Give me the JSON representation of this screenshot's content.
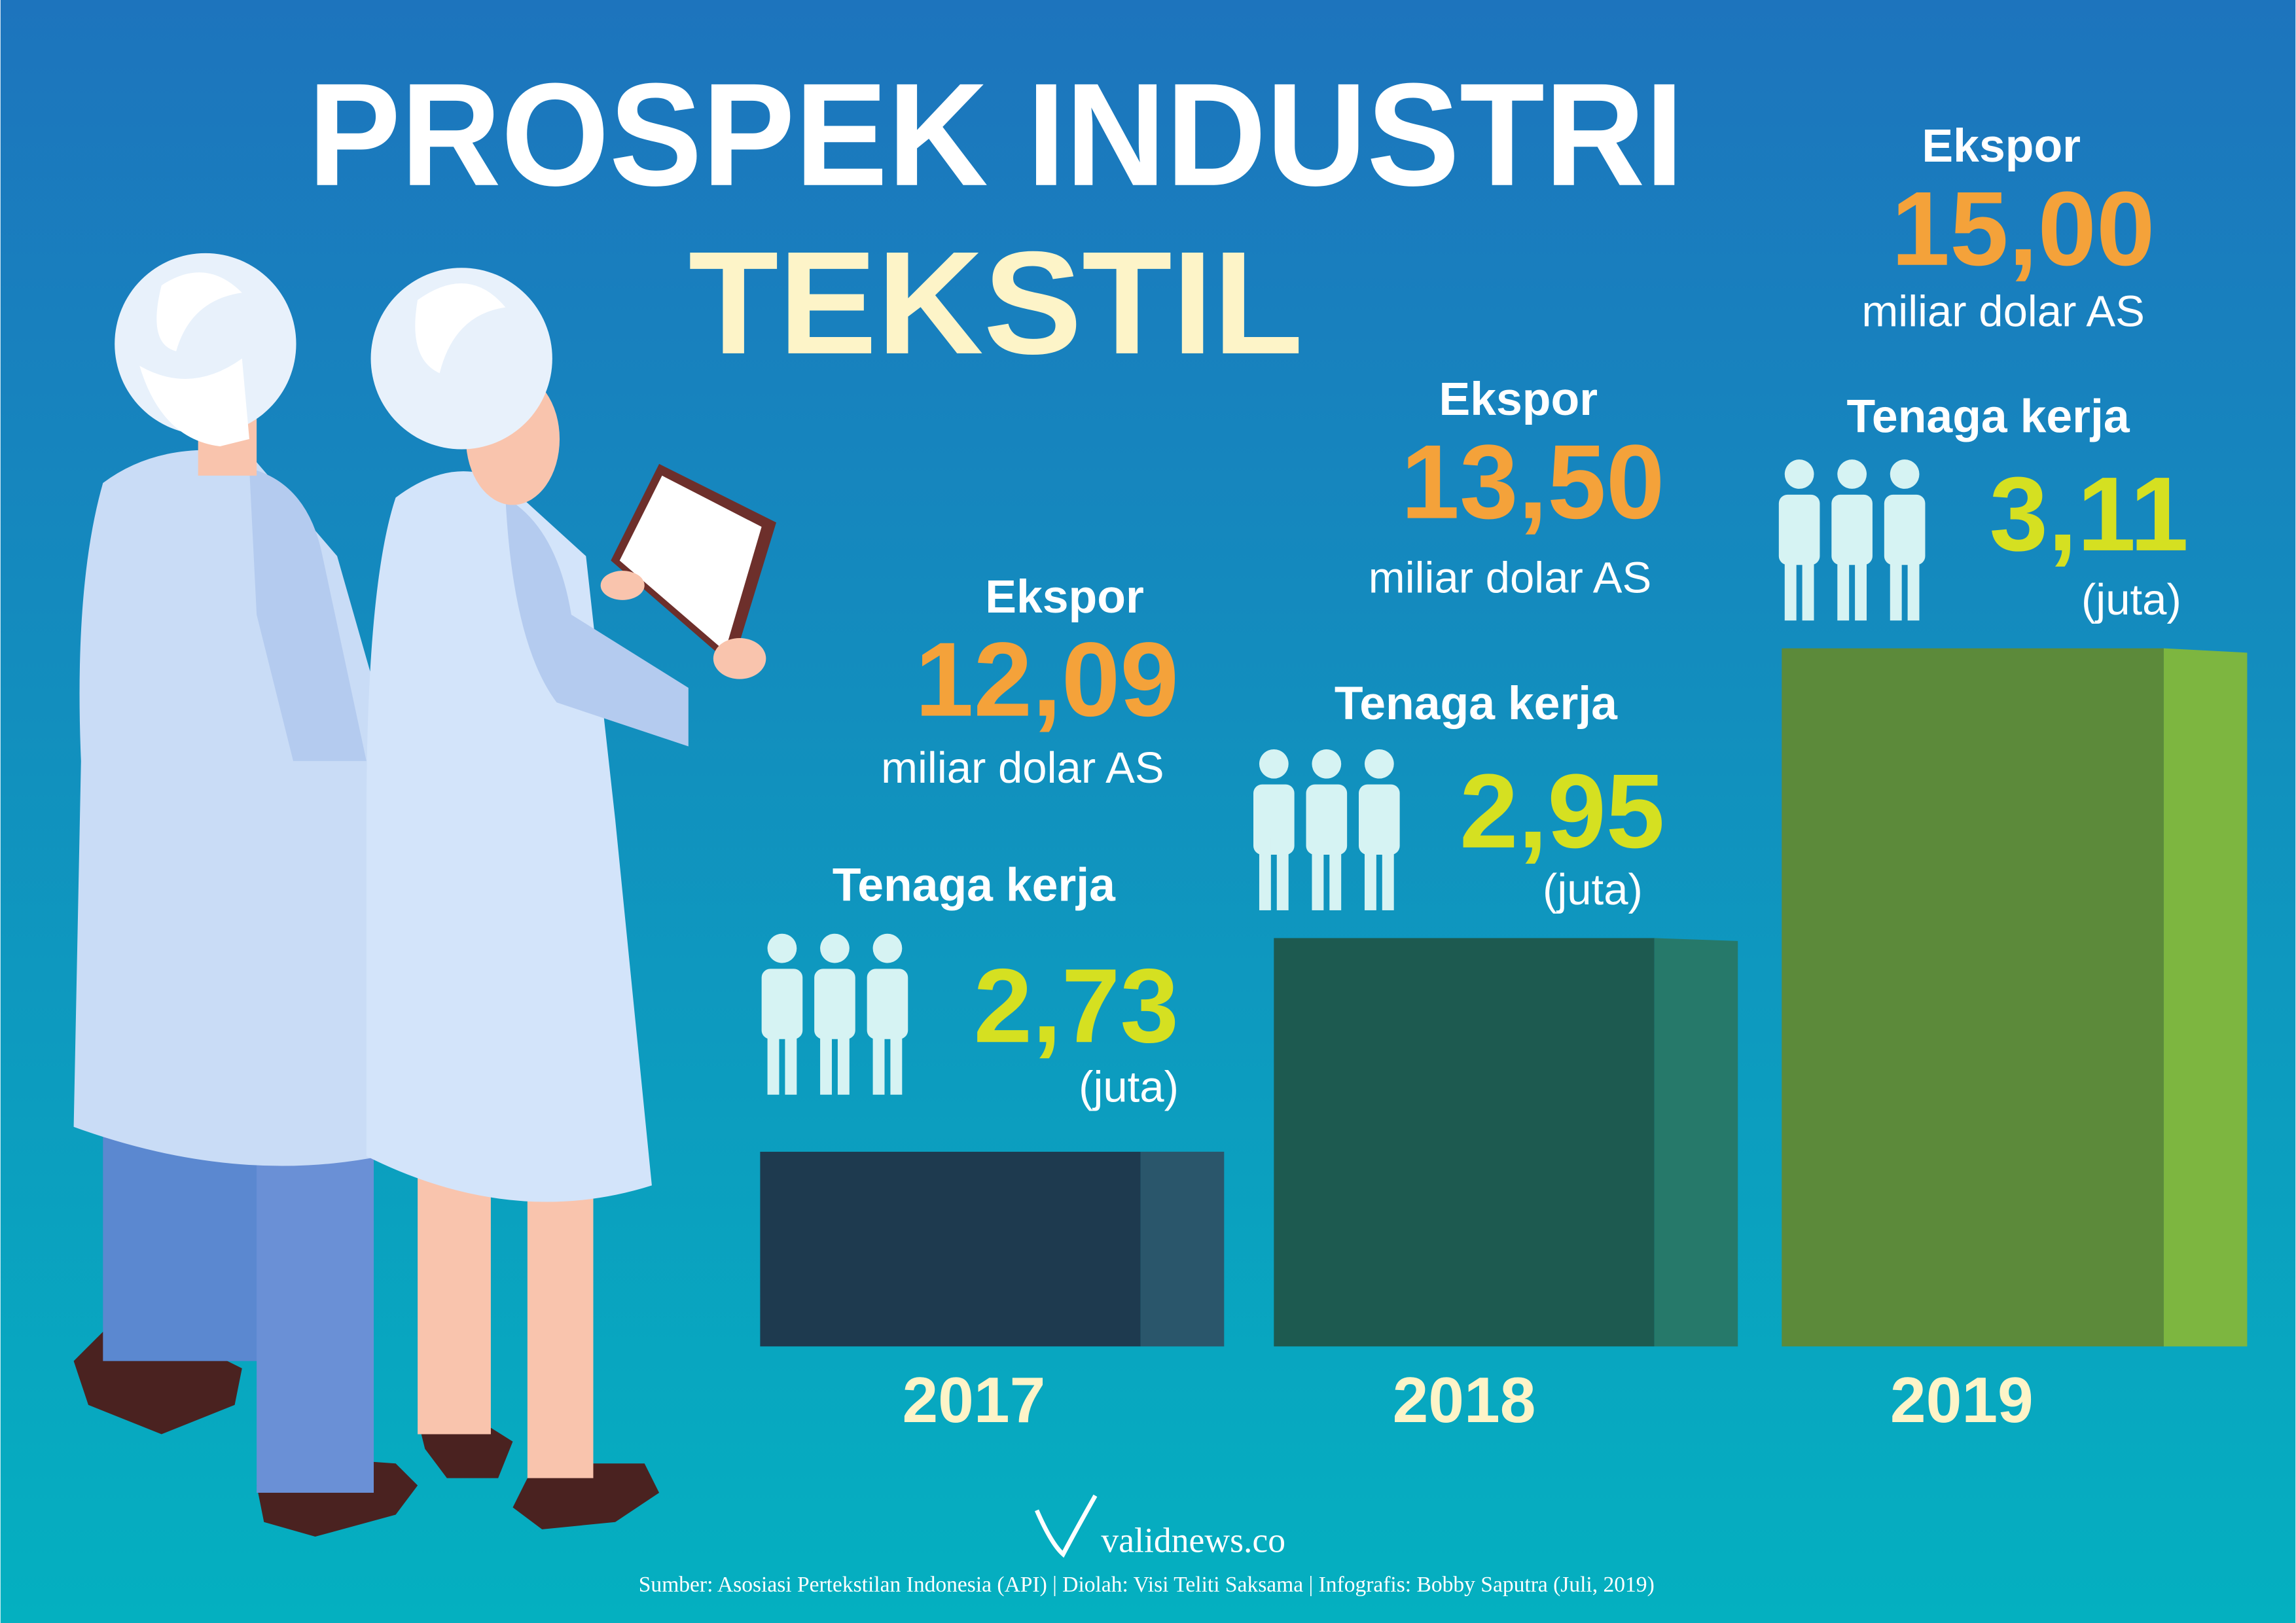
{
  "title": {
    "line1": "PROSPEK INDUSTRI",
    "line2": "TEKSTIL"
  },
  "years": [
    {
      "year": "2017",
      "export_label": "Ekspor",
      "export_value": "12,09",
      "export_unit": "miliar dolar AS",
      "labor_label": "Tenaga kerja",
      "labor_value": "2,73",
      "labor_unit": "(juta)"
    },
    {
      "year": "2018",
      "export_label": "Ekspor",
      "export_value": "13,50",
      "export_unit": "miliar dolar AS",
      "labor_label": "Tenaga kerja",
      "labor_value": "2,95",
      "labor_unit": "(juta)"
    },
    {
      "year": "2019",
      "export_label": "Ekspor",
      "export_value": "15,00",
      "export_unit": "miliar dolar AS",
      "labor_label": "Tenaga kerja",
      "labor_value": "3,11",
      "labor_unit": "(juta)"
    }
  ],
  "brand": "validnews.co",
  "source": "Sumber: Asosiasi Pertekstilan Indonesia (API) | Diolah:  Visi Teliti Saksama | Infografis: Bobby Saputra (Juli, 2019)"
}
